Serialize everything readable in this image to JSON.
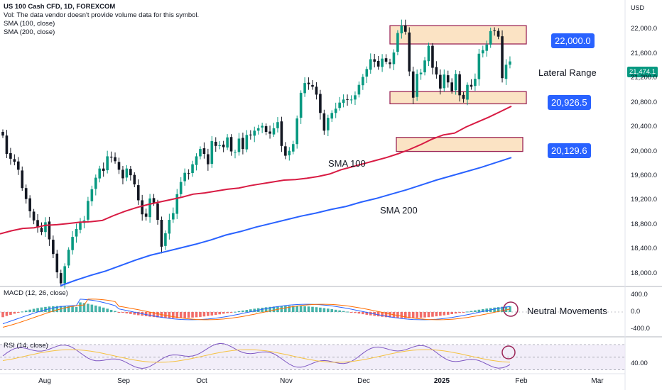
{
  "header": {
    "title": "US 100 Cash CFD, 1D, FOREXCOM",
    "vol_note": "Vol: The data vendor doesn't provide volume data for this symbol.",
    "sma100_label": "SMA (100, close)",
    "sma200_label": "SMA (200, close)"
  },
  "currency": "USD",
  "annotations": {
    "level_high": "22,000.0",
    "level_mid": "20,926.5",
    "level_low": "20,129.6",
    "lateral_range": "Lateral Range",
    "sma100": "SMA 100",
    "sma200": "SMA 200",
    "neutral": "Neutral Movements"
  },
  "last_price": "21,474.1",
  "macd_title": "MACD (12, 26, close)",
  "rsi_title": "RSI (14, close)",
  "colors": {
    "up": "#089981",
    "down": "#131722",
    "sma100": "#d81b43",
    "sma200": "#2962ff",
    "macd": "#2962ff",
    "signal": "#ff6d00",
    "rsi": "#7e57c2",
    "zone": "#fbe3c4",
    "zone_border": "#9c2757",
    "tag": "#2962ff"
  },
  "chart_data": [
    {
      "type": "candlestick",
      "title": "US 100 Cash CFD, 1D, FOREXCOM",
      "x_ticks": [
        "Aug",
        "Sep",
        "Oct",
        "Nov",
        "Dec",
        "2025",
        "Feb",
        "Mar"
      ],
      "y_ticks": [
        "22,000.0",
        "21,600.0",
        "21,200.0",
        "20,800.0",
        "20,400.0",
        "20,000.0",
        "19,600.0",
        "19,200.0",
        "18,800.0",
        "18,400.0",
        "18,000.0"
      ],
      "ylim": [
        17800,
        22480
      ],
      "closes": [
        20260,
        19960,
        19880,
        19830,
        19700,
        19400,
        19220,
        19020,
        18870,
        18760,
        18680,
        18840,
        18560,
        18320,
        18020,
        17840,
        18120,
        18390,
        18600,
        18730,
        18830,
        18870,
        19190,
        19380,
        19570,
        19720,
        19680,
        19920,
        19900,
        19840,
        19700,
        19560,
        19720,
        19610,
        19460,
        19200,
        18970,
        18930,
        19230,
        19160,
        18880,
        18440,
        18660,
        18880,
        18990,
        19300,
        19500,
        19650,
        19640,
        19790,
        19920,
        20040,
        19960,
        19790,
        20170,
        20090,
        20100,
        20070,
        20230,
        20000,
        19990,
        20210,
        20040,
        20270,
        20270,
        20340,
        20380,
        20420,
        20320,
        20290,
        20380,
        20480,
        20090,
        19930,
        20010,
        20120,
        20540,
        20960,
        21120,
        21100,
        21060,
        20930,
        20630,
        20340,
        20550,
        20630,
        20700,
        20800,
        20850,
        20850,
        20850,
        20920,
        21090,
        21220,
        21350,
        21510,
        21470,
        21390,
        21520,
        21470,
        21430,
        21620,
        21940,
        22060,
        21960,
        21310,
        20880,
        21270,
        21290,
        21490,
        21730,
        21370,
        21260,
        21030,
        21260,
        21130,
        20990,
        21270,
        20920,
        20860,
        21090,
        21060,
        21190,
        21600,
        21660,
        21750,
        21970,
        21980,
        21880,
        21200,
        21420,
        21474
      ],
      "sma100": [
        18650,
        18700,
        18740,
        18750,
        18790,
        18800,
        18820,
        18840,
        18850,
        18870,
        18950,
        19020,
        19080,
        19130,
        19170,
        19210,
        19250,
        19300,
        19320,
        19350,
        19380,
        19400,
        19440,
        19470,
        19500,
        19530,
        19540,
        19560,
        19590,
        19630,
        19700,
        19750,
        19800,
        19850,
        19900,
        19960,
        20030,
        20110,
        20200,
        20270,
        20300,
        20400,
        20480,
        20560,
        20650,
        20740
      ],
      "sma200": [
        17800,
        17890,
        17970,
        18040,
        18130,
        18220,
        18300,
        18360,
        18420,
        18480,
        18550,
        18630,
        18690,
        18760,
        18820,
        18880,
        18940,
        18990,
        19050,
        19100,
        19170,
        19230,
        19300,
        19370,
        19450,
        19530,
        19600,
        19670,
        19740,
        19820,
        19900
      ],
      "zones": [
        [
          21760,
          22060
        ],
        [
          20780,
          20980
        ],
        [
          20000,
          20230
        ]
      ]
    },
    {
      "type": "bar",
      "title": "MACD (12, 26, close)",
      "y_ticks": [
        "400.0",
        "0.0",
        "-400.0"
      ],
      "ylim": [
        -560,
        560
      ]
    },
    {
      "type": "line",
      "title": "RSI (14, close)",
      "y_ticks": [
        "40.00"
      ],
      "ylim": [
        24,
        80
      ]
    }
  ]
}
